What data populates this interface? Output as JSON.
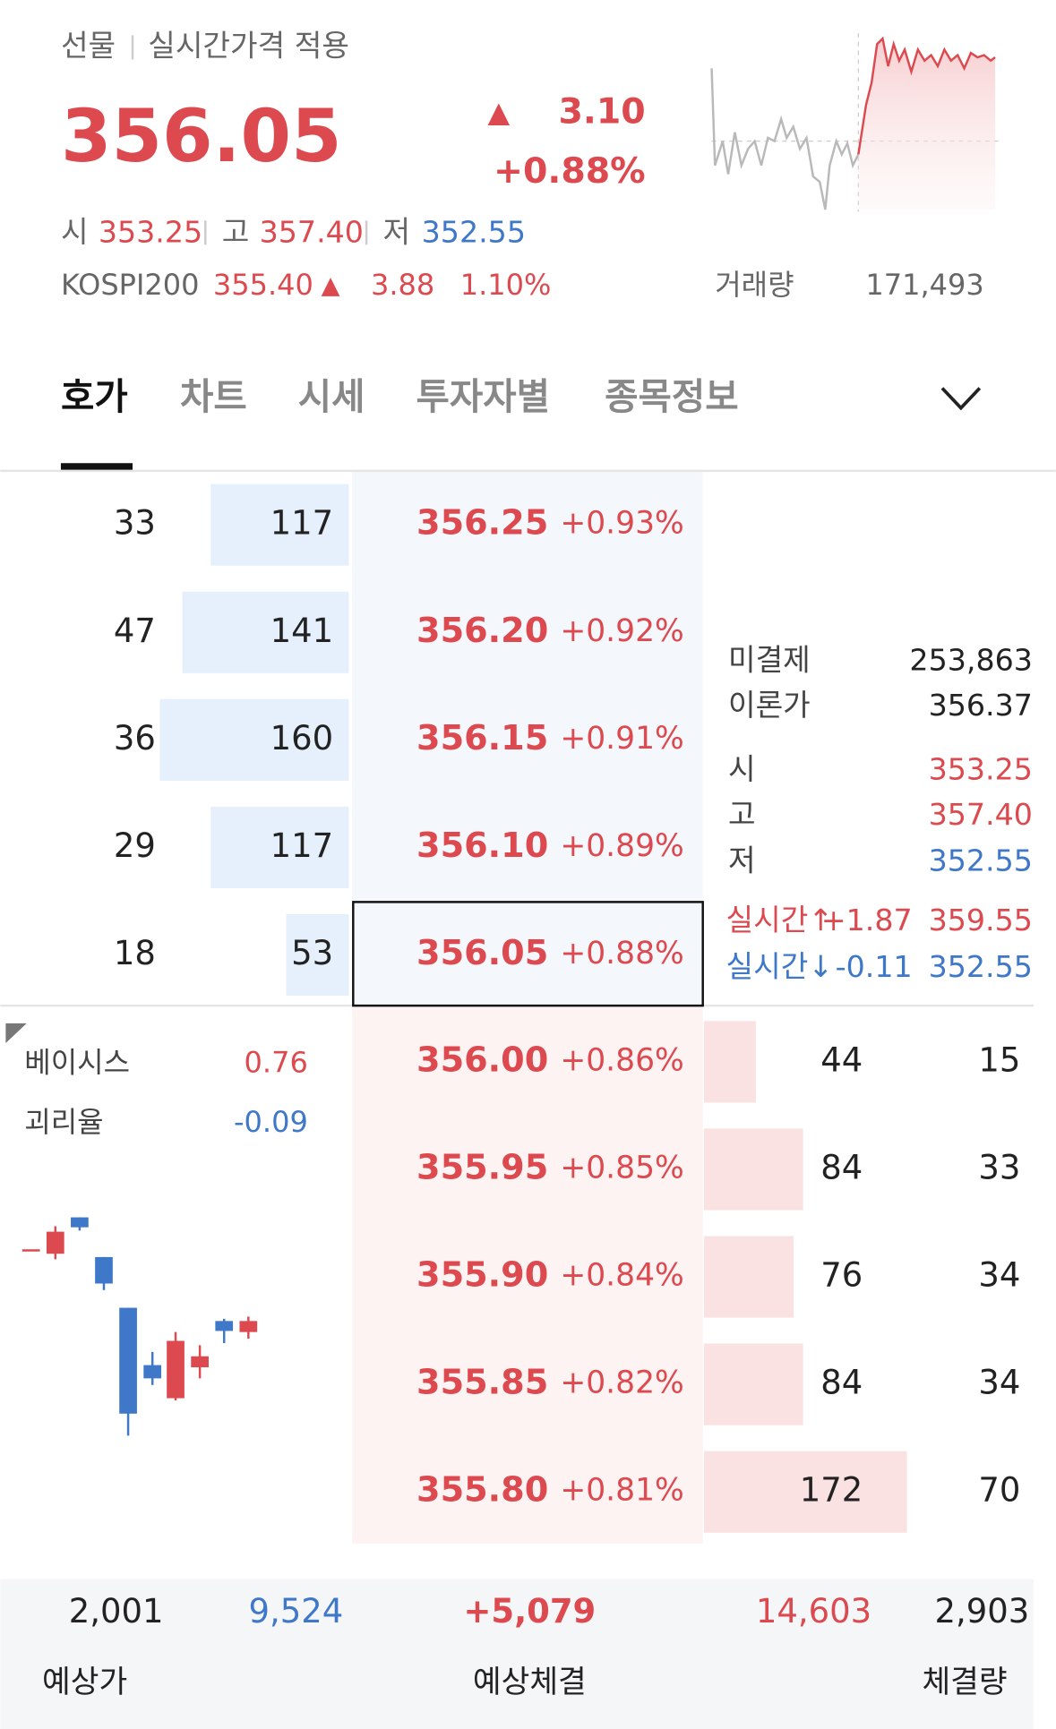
{
  "header": {
    "market": "선물",
    "mode": "실시간가격 적용",
    "price": "356.05",
    "change_arrow": "▲",
    "change": "3.10",
    "change_pct": "+0.88%",
    "ohl": [
      {
        "label": "시",
        "value": "353.25"
      },
      {
        "label": "고",
        "value": "357.40"
      },
      {
        "label": "저",
        "value": "352.55"
      }
    ],
    "index": {
      "name": "KOSPI200",
      "price": "355.40",
      "arrow": "▲",
      "change": "3.88",
      "change_pct": "1.10%"
    },
    "volume": {
      "label": "거래량",
      "value": "171,493"
    }
  },
  "tabs": [
    "호가",
    "차트",
    "시세",
    "투자자별",
    "종목정보"
  ],
  "asks": [
    {
      "count": 33,
      "quantity": 117,
      "price": "356.25",
      "change_pct": "+0.93%"
    },
    {
      "count": 47,
      "quantity": 141,
      "price": "356.20",
      "change_pct": "+0.92%"
    },
    {
      "count": 36,
      "quantity": 160,
      "price": "356.15",
      "change_pct": "+0.91%"
    },
    {
      "count": 29,
      "quantity": 117,
      "price": "356.10",
      "change_pct": "+0.89%"
    },
    {
      "count": 18,
      "quantity": 53,
      "price": "356.05",
      "change_pct": "+0.88%"
    }
  ],
  "bids": [
    {
      "price": "356.00",
      "change_pct": "+0.86%",
      "quantity": 44,
      "count": 15
    },
    {
      "price": "355.95",
      "change_pct": "+0.85%",
      "quantity": 84,
      "count": 33
    },
    {
      "price": "355.90",
      "change_pct": "+0.84%",
      "quantity": 76,
      "count": 34
    },
    {
      "price": "355.85",
      "change_pct": "+0.82%",
      "quantity": 84,
      "count": 34
    },
    {
      "price": "355.80",
      "change_pct": "+0.81%",
      "quantity": 172,
      "count": 70
    }
  ],
  "info": [
    {
      "label": "미결제",
      "value": "253,863"
    },
    {
      "label": "이론가",
      "value": "356.37"
    },
    {
      "label": "시",
      "value": "353.25"
    },
    {
      "label": "고",
      "value": "357.40"
    },
    {
      "label": "저",
      "value": "352.55"
    }
  ],
  "realtime": [
    {
      "label": "실시간↑",
      "change": "+1.87",
      "value": "359.55"
    },
    {
      "label": "실시간↓",
      "change": "-0.11",
      "value": "352.55"
    }
  ],
  "basis": [
    {
      "label": "베이시스",
      "value": "0.76"
    },
    {
      "label": "괴리율",
      "value": "-0.09"
    }
  ],
  "summary": {
    "values": [
      "2,001",
      "9,524",
      "+5,079",
      "14,603",
      "2,903"
    ],
    "labels": [
      "예상가",
      "예상체결",
      "체결량"
    ]
  }
}
